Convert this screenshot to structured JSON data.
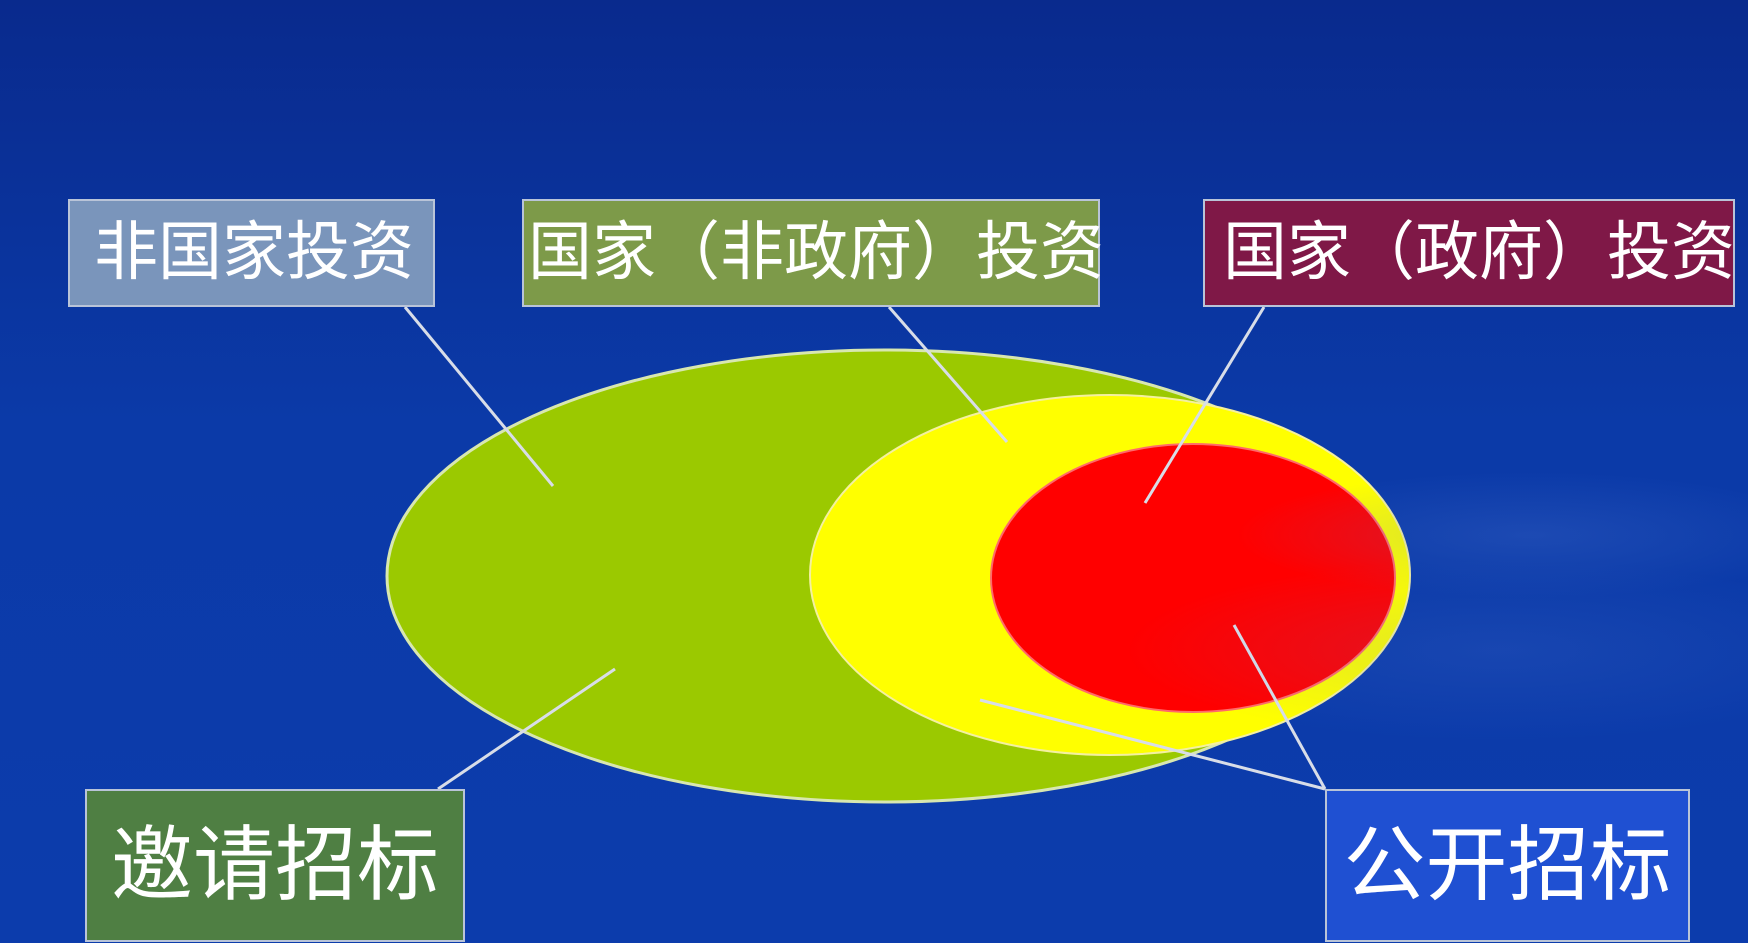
{
  "diagram": {
    "labels": {
      "non_state": "非国家投资",
      "state_non_gov": "国家（非政府）投资",
      "state_gov": "国家（政府）投资",
      "invited_bidding": "邀请招标",
      "public_bidding": "公开招标"
    },
    "colors": {
      "background": "#0b3aa8",
      "non_state_region": "#9bc900",
      "state_non_gov_region": "#ffff00",
      "state_gov_region": "#ff0000",
      "non_state_box": "#7a95bb",
      "state_non_gov_box": "#7d9a49",
      "state_gov_box": "#7f1847",
      "invited_box": "#4f7f43",
      "public_box": "#1f50d2"
    }
  }
}
